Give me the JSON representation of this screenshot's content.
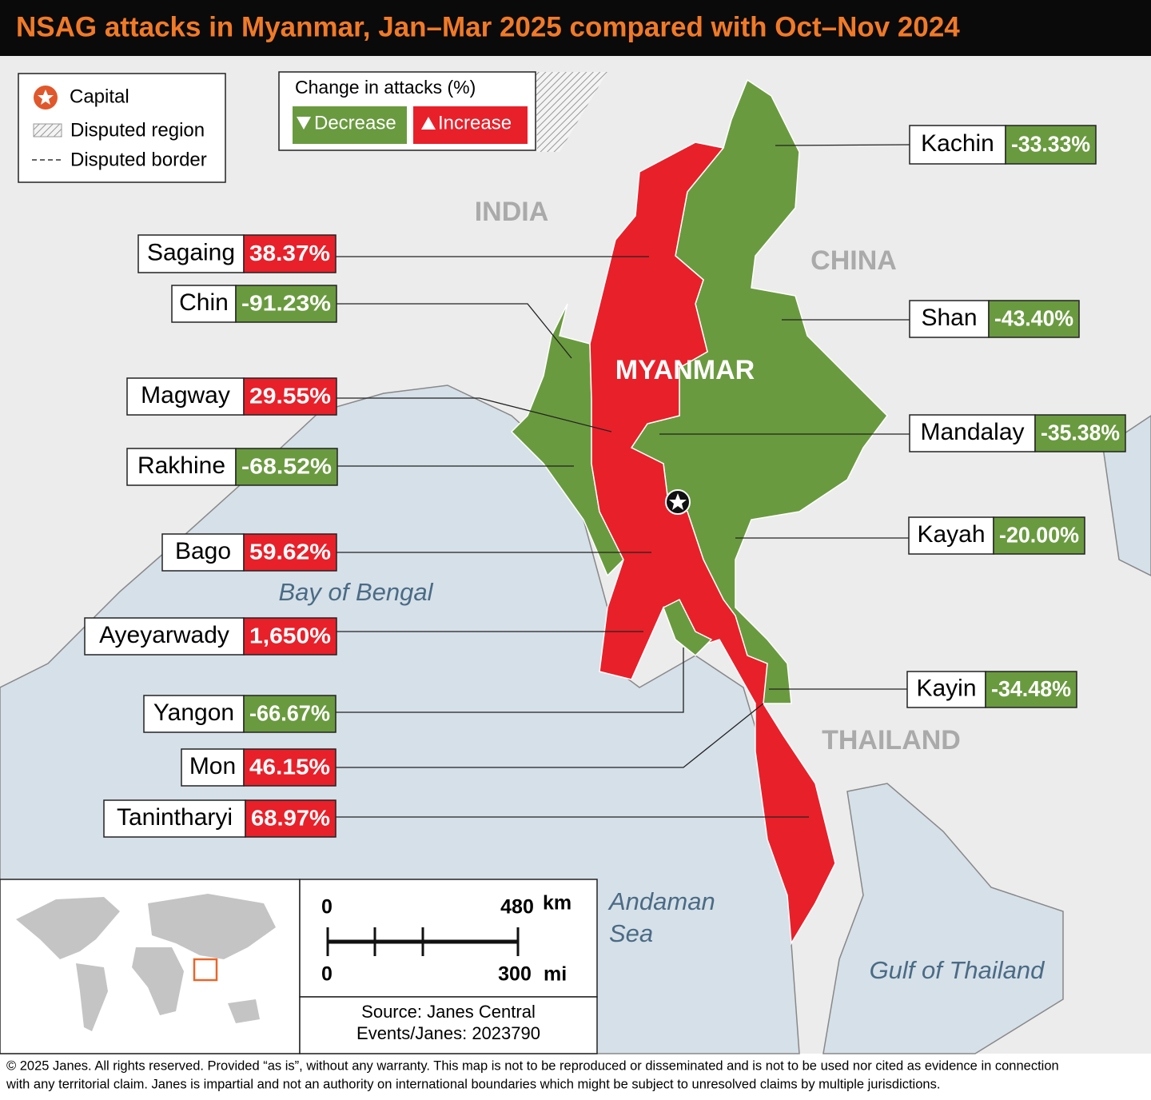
{
  "header": {
    "title": "NSAG attacks in Myanmar, Jan–Mar 2025 compared with Oct–Nov 2024"
  },
  "map_legend": [
    "Capital",
    "Disputed region",
    "Disputed border"
  ],
  "change_legend": {
    "title": "Change in attacks (%)",
    "items": [
      {
        "label": "Decrease",
        "color": "#6a9a3f"
      },
      {
        "label": "Increase",
        "color": "#e8202a"
      }
    ]
  },
  "country_labels": [
    "INDIA",
    "CHINA",
    "MYANMAR",
    "THAILAND"
  ],
  "water_labels": [
    [
      "Bay of Bengal"
    ],
    [
      "Andaman",
      "Sea"
    ],
    [
      "Gulf of Thailand"
    ]
  ],
  "regions": [
    {
      "name": "Kachin",
      "change": "-33.33%",
      "color": "#6a9a3f"
    },
    {
      "name": "Sagaing",
      "change": "38.37%",
      "color": "#e8202a"
    },
    {
      "name": "Chin",
      "change": "-91.23%",
      "color": "#6a9a3f"
    },
    {
      "name": "Shan",
      "change": "-43.40%",
      "color": "#6a9a3f"
    },
    {
      "name": "Magway",
      "change": "29.55%",
      "color": "#e8202a"
    },
    {
      "name": "Mandalay",
      "change": "-35.38%",
      "color": "#6a9a3f"
    },
    {
      "name": "Rakhine",
      "change": "-68.52%",
      "color": "#6a9a3f"
    },
    {
      "name": "Kayah",
      "change": "-20.00%",
      "color": "#6a9a3f"
    },
    {
      "name": "Bago",
      "change": "59.62%",
      "color": "#e8202a"
    },
    {
      "name": "Ayeyarwady",
      "change": "1,650%",
      "color": "#e8202a"
    },
    {
      "name": "Kayin",
      "change": "-34.48%",
      "color": "#6a9a3f"
    },
    {
      "name": "Yangon",
      "change": "-66.67%",
      "color": "#6a9a3f"
    },
    {
      "name": "Mon",
      "change": "46.15%",
      "color": "#e8202a"
    },
    {
      "name": "Tanintharyi",
      "change": "68.97%",
      "color": "#e8202a"
    }
  ],
  "scale": {
    "km": {
      "ticks": [
        0,
        480
      ],
      "unit": "km"
    },
    "mi": {
      "ticks": [
        0,
        300
      ],
      "unit": "mi"
    }
  },
  "source": [
    "Source: Janes Central",
    "Events/Janes: 2023790"
  ],
  "footer": [
    "© 2025 Janes. All rights reserved. Provided “as is”, without any warranty. This map is not to be reproduced or disseminated and is not to be used nor cited as evidence in connection",
    "with any territorial claim. Janes is impartial and not an authority on international boundaries which might be subject to unresolved claims by multiple jurisdictions."
  ]
}
